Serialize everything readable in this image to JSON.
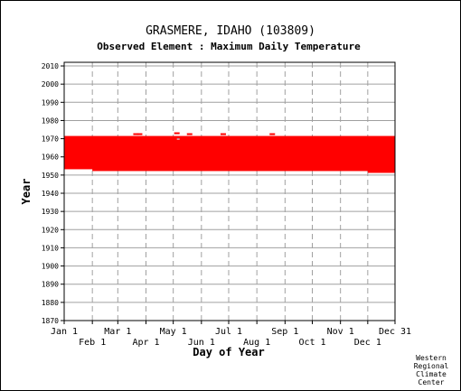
{
  "chart_data": {
    "type": "scatter",
    "title": "GRASMERE, IDAHO   (103809)",
    "subtitle": "Observed Element : Maximum Daily Temperature",
    "xlabel": "Day of Year",
    "ylabel": "Year",
    "x_ticks_upper": [
      "Jan 1",
      "Mar 1",
      "May 1",
      "Jul 1",
      "Sep 1",
      "Nov 1",
      "Dec 31"
    ],
    "x_ticks_lower": [
      "Feb 1",
      "Apr 1",
      "Jun 1",
      "Aug 1",
      "Oct 1",
      "Dec 1"
    ],
    "x_tick_days_upper": [
      1,
      60,
      121,
      182,
      244,
      305,
      365
    ],
    "x_tick_days_lower": [
      32,
      91,
      152,
      213,
      274,
      335
    ],
    "xlim": [
      1,
      365
    ],
    "y_ticks": [
      1870,
      1880,
      1890,
      1900,
      1910,
      1920,
      1930,
      1940,
      1950,
      1960,
      1970,
      1980,
      1990,
      2000,
      2010
    ],
    "ylim": [
      1870,
      2012
    ],
    "grid": true,
    "marker_color": "#ff0000",
    "observed_period": {
      "start_year": 1952,
      "end_year": 1971
    },
    "series": [
      {
        "observed_rows": [
          {
            "year": 1971,
            "segments": [
              [
                1,
                365
              ]
            ]
          },
          {
            "year": 1970,
            "segments": [
              [
                1,
                125
              ],
              [
                128,
                365
              ]
            ]
          },
          {
            "year": 1969,
            "segments": [
              [
                1,
                365
              ]
            ]
          },
          {
            "year": 1968,
            "segments": [
              [
                1,
                365
              ]
            ]
          },
          {
            "year": 1967,
            "segments": [
              [
                1,
                365
              ]
            ]
          },
          {
            "year": 1966,
            "segments": [
              [
                1,
                365
              ]
            ]
          },
          {
            "year": 1965,
            "segments": [
              [
                1,
                365
              ]
            ]
          },
          {
            "year": 1964,
            "segments": [
              [
                1,
                365
              ]
            ]
          },
          {
            "year": 1963,
            "segments": [
              [
                1,
                365
              ]
            ]
          },
          {
            "year": 1962,
            "segments": [
              [
                1,
                365
              ]
            ]
          },
          {
            "year": 1961,
            "segments": [
              [
                1,
                365
              ]
            ]
          },
          {
            "year": 1960,
            "segments": [
              [
                1,
                365
              ]
            ]
          },
          {
            "year": 1959,
            "segments": [
              [
                1,
                365
              ]
            ]
          },
          {
            "year": 1958,
            "segments": [
              [
                1,
                365
              ]
            ]
          },
          {
            "year": 1957,
            "segments": [
              [
                1,
                365
              ]
            ]
          },
          {
            "year": 1956,
            "segments": [
              [
                1,
                365
              ]
            ]
          },
          {
            "year": 1955,
            "segments": [
              [
                1,
                365
              ]
            ]
          },
          {
            "year": 1954,
            "segments": [
              [
                1,
                365
              ]
            ]
          },
          {
            "year": 1953,
            "segments": [
              [
                32,
                365
              ]
            ]
          },
          {
            "year": 1952,
            "segments": [
              [
                335,
                365
              ]
            ]
          }
        ],
        "extra_points": [
          {
            "day": 80,
            "year": 1972.5
          },
          {
            "day": 84,
            "year": 1972.5
          },
          {
            "day": 125,
            "year": 1973
          },
          {
            "day": 139,
            "year": 1972.5
          },
          {
            "day": 176,
            "year": 1972.5
          },
          {
            "day": 230,
            "year": 1972.5
          }
        ]
      }
    ]
  },
  "credit": [
    "Western",
    "Regional",
    "Climate",
    "Center"
  ]
}
